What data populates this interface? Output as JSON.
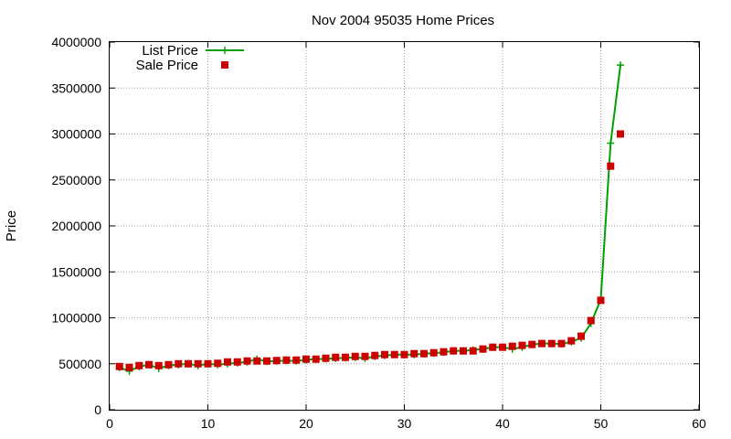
{
  "chart_data": {
    "type": "line",
    "title": "Nov 2004 95035 Home Prices",
    "xlabel": "",
    "ylabel": "Price",
    "xlim": [
      0,
      60
    ],
    "ylim": [
      0,
      4000000
    ],
    "xticks": [
      "0",
      "10",
      "20",
      "30",
      "40",
      "50",
      "60"
    ],
    "yticks": [
      "0",
      "500000",
      "1000000",
      "1500000",
      "2000000",
      "2500000",
      "3000000",
      "3500000",
      "4000000"
    ],
    "grid": true,
    "legend_position": "top-left",
    "x": [
      1,
      2,
      3,
      4,
      5,
      6,
      7,
      8,
      9,
      10,
      11,
      12,
      13,
      14,
      15,
      16,
      17,
      18,
      19,
      20,
      21,
      22,
      23,
      24,
      25,
      26,
      27,
      28,
      29,
      30,
      31,
      32,
      33,
      34,
      35,
      36,
      37,
      38,
      39,
      40,
      41,
      42,
      43,
      44,
      45,
      46,
      47,
      48,
      49,
      50,
      51,
      52
    ],
    "series": [
      {
        "name": "List Price",
        "style": "line-plus",
        "color": "#00a000",
        "values": [
          460000,
          420000,
          470000,
          490000,
          450000,
          480000,
          490000,
          500000,
          480000,
          500000,
          490000,
          500000,
          510000,
          520000,
          550000,
          525000,
          530000,
          535000,
          530000,
          545000,
          550000,
          555000,
          560000,
          565000,
          570000,
          560000,
          580000,
          590000,
          600000,
          600000,
          600000,
          610000,
          615000,
          625000,
          640000,
          640000,
          650000,
          660000,
          680000,
          680000,
          660000,
          680000,
          710000,
          720000,
          720000,
          715000,
          740000,
          780000,
          940000,
          1200000,
          2900000,
          3750000
        ]
      },
      {
        "name": "Sale Price",
        "style": "square-markers",
        "color": "#cc0000",
        "values": [
          470000,
          460000,
          480000,
          490000,
          480000,
          490000,
          500000,
          500000,
          500000,
          500000,
          505000,
          520000,
          520000,
          530000,
          530000,
          530000,
          535000,
          540000,
          540000,
          550000,
          550000,
          560000,
          570000,
          570000,
          580000,
          580000,
          590000,
          600000,
          600000,
          600000,
          610000,
          610000,
          620000,
          630000,
          640000,
          640000,
          640000,
          660000,
          680000,
          680000,
          690000,
          700000,
          710000,
          720000,
          720000,
          720000,
          750000,
          800000,
          970000,
          1190000,
          2650000,
          3000000
        ]
      }
    ]
  }
}
